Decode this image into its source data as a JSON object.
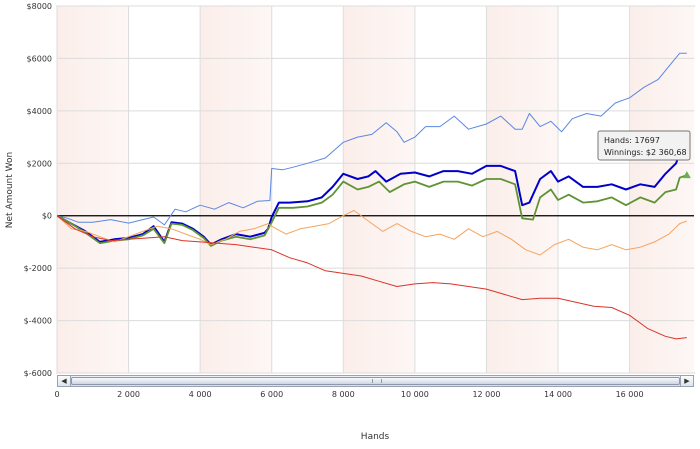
{
  "chart_data": {
    "type": "line",
    "xlabel": "Hands",
    "ylabel": "Net Amount Won",
    "xlim": [
      0,
      17800
    ],
    "ylim": [
      -6000,
      8000
    ],
    "x_ticks": [
      0,
      2000,
      4000,
      6000,
      8000,
      10000,
      12000,
      14000,
      16000
    ],
    "x_tick_labels": [
      "0",
      "2 000",
      "4 000",
      "6 000",
      "8 000",
      "10 000",
      "12 000",
      "14 000",
      "16 000"
    ],
    "y_ticks": [
      -6000,
      -4000,
      -2000,
      0,
      2000,
      4000,
      6000,
      8000
    ],
    "y_tick_labels": [
      "$-6000",
      "$-4000",
      "$-2000",
      "$0",
      "$2000",
      "$4000",
      "$6000",
      "$8000"
    ],
    "grid": true,
    "series": [
      {
        "color": "#5b87e3",
        "points": [
          [
            0,
            0
          ],
          [
            300,
            -100
          ],
          [
            600,
            -250
          ],
          [
            1000,
            -250
          ],
          [
            1500,
            -150
          ],
          [
            2000,
            -280
          ],
          [
            2400,
            -150
          ],
          [
            2700,
            -50
          ],
          [
            3000,
            -350
          ],
          [
            3300,
            250
          ],
          [
            3600,
            150
          ],
          [
            4000,
            400
          ],
          [
            4400,
            250
          ],
          [
            4800,
            500
          ],
          [
            5200,
            300
          ],
          [
            5600,
            550
          ],
          [
            5950,
            580
          ],
          [
            6000,
            1800
          ],
          [
            6300,
            1750
          ],
          [
            6600,
            1850
          ],
          [
            7000,
            2000
          ],
          [
            7500,
            2200
          ],
          [
            8000,
            2800
          ],
          [
            8400,
            3000
          ],
          [
            8800,
            3100
          ],
          [
            9200,
            3550
          ],
          [
            9500,
            3200
          ],
          [
            9700,
            2800
          ],
          [
            10000,
            3000
          ],
          [
            10300,
            3400
          ],
          [
            10700,
            3400
          ],
          [
            11100,
            3800
          ],
          [
            11500,
            3300
          ],
          [
            12000,
            3500
          ],
          [
            12400,
            3800
          ],
          [
            12800,
            3300
          ],
          [
            13000,
            3300
          ],
          [
            13200,
            3900
          ],
          [
            13500,
            3400
          ],
          [
            13800,
            3600
          ],
          [
            14100,
            3200
          ],
          [
            14400,
            3700
          ],
          [
            14800,
            3900
          ],
          [
            15200,
            3800
          ],
          [
            15600,
            4300
          ],
          [
            16000,
            4500
          ],
          [
            16400,
            4900
          ],
          [
            16800,
            5200
          ],
          [
            17100,
            5700
          ],
          [
            17400,
            6200
          ],
          [
            17600,
            6200
          ]
        ]
      },
      {
        "color": "#0000c8",
        "points": [
          [
            0,
            0
          ],
          [
            400,
            -300
          ],
          [
            800,
            -600
          ],
          [
            1200,
            -1000
          ],
          [
            1600,
            -900
          ],
          [
            2000,
            -850
          ],
          [
            2400,
            -700
          ],
          [
            2700,
            -400
          ],
          [
            3000,
            -1000
          ],
          [
            3200,
            -250
          ],
          [
            3500,
            -300
          ],
          [
            3800,
            -500
          ],
          [
            4100,
            -800
          ],
          [
            4300,
            -1100
          ],
          [
            4600,
            -900
          ],
          [
            5000,
            -700
          ],
          [
            5400,
            -800
          ],
          [
            5800,
            -650
          ],
          [
            5900,
            -500
          ],
          [
            6000,
            -50
          ],
          [
            6200,
            500
          ],
          [
            6500,
            500
          ],
          [
            7000,
            550
          ],
          [
            7400,
            700
          ],
          [
            7700,
            1100
          ],
          [
            8000,
            1600
          ],
          [
            8400,
            1400
          ],
          [
            8700,
            1500
          ],
          [
            8900,
            1700
          ],
          [
            9200,
            1300
          ],
          [
            9600,
            1600
          ],
          [
            10000,
            1650
          ],
          [
            10400,
            1500
          ],
          [
            10800,
            1700
          ],
          [
            11200,
            1700
          ],
          [
            11600,
            1600
          ],
          [
            12000,
            1900
          ],
          [
            12400,
            1900
          ],
          [
            12800,
            1700
          ],
          [
            13000,
            400
          ],
          [
            13200,
            500
          ],
          [
            13500,
            1400
          ],
          [
            13800,
            1700
          ],
          [
            14000,
            1300
          ],
          [
            14300,
            1500
          ],
          [
            14700,
            1100
          ],
          [
            15100,
            1100
          ],
          [
            15500,
            1200
          ],
          [
            15900,
            1000
          ],
          [
            16300,
            1200
          ],
          [
            16700,
            1100
          ],
          [
            17000,
            1600
          ],
          [
            17300,
            2000
          ],
          [
            17400,
            2400
          ],
          [
            17600,
            2350
          ]
        ]
      },
      {
        "color": "#5f9436",
        "points": [
          [
            0,
            0
          ],
          [
            400,
            -300
          ],
          [
            800,
            -650
          ],
          [
            1200,
            -1050
          ],
          [
            1600,
            -950
          ],
          [
            2000,
            -900
          ],
          [
            2400,
            -750
          ],
          [
            2700,
            -500
          ],
          [
            3000,
            -1050
          ],
          [
            3200,
            -300
          ],
          [
            3500,
            -350
          ],
          [
            3800,
            -550
          ],
          [
            4100,
            -850
          ],
          [
            4300,
            -1150
          ],
          [
            4600,
            -950
          ],
          [
            5000,
            -800
          ],
          [
            5400,
            -900
          ],
          [
            5800,
            -750
          ],
          [
            6000,
            -250
          ],
          [
            6200,
            300
          ],
          [
            6600,
            300
          ],
          [
            7000,
            350
          ],
          [
            7400,
            500
          ],
          [
            7700,
            800
          ],
          [
            8000,
            1300
          ],
          [
            8400,
            1000
          ],
          [
            8700,
            1100
          ],
          [
            9000,
            1300
          ],
          [
            9300,
            900
          ],
          [
            9700,
            1200
          ],
          [
            10000,
            1300
          ],
          [
            10400,
            1100
          ],
          [
            10800,
            1300
          ],
          [
            11200,
            1300
          ],
          [
            11600,
            1150
          ],
          [
            12000,
            1400
          ],
          [
            12400,
            1400
          ],
          [
            12800,
            1200
          ],
          [
            13000,
            -100
          ],
          [
            13300,
            -150
          ],
          [
            13500,
            700
          ],
          [
            13800,
            1000
          ],
          [
            14000,
            600
          ],
          [
            14300,
            800
          ],
          [
            14700,
            500
          ],
          [
            15100,
            550
          ],
          [
            15500,
            700
          ],
          [
            15900,
            400
          ],
          [
            16300,
            700
          ],
          [
            16700,
            500
          ],
          [
            17000,
            900
          ],
          [
            17300,
            1000
          ],
          [
            17400,
            1450
          ],
          [
            17600,
            1550
          ]
        ]
      },
      {
        "color": "#f4a460",
        "points": [
          [
            0,
            0
          ],
          [
            400,
            -500
          ],
          [
            800,
            -600
          ],
          [
            1200,
            -800
          ],
          [
            1600,
            -1000
          ],
          [
            2000,
            -800
          ],
          [
            2400,
            -600
          ],
          [
            2800,
            -400
          ],
          [
            3200,
            -500
          ],
          [
            3600,
            -700
          ],
          [
            4000,
            -900
          ],
          [
            4300,
            -1100
          ],
          [
            4700,
            -900
          ],
          [
            5100,
            -600
          ],
          [
            5500,
            -500
          ],
          [
            5900,
            -300
          ],
          [
            6000,
            -400
          ],
          [
            6400,
            -700
          ],
          [
            6800,
            -500
          ],
          [
            7200,
            -400
          ],
          [
            7600,
            -300
          ],
          [
            8000,
            0
          ],
          [
            8300,
            200
          ],
          [
            8700,
            -200
          ],
          [
            9100,
            -600
          ],
          [
            9500,
            -300
          ],
          [
            9900,
            -600
          ],
          [
            10300,
            -800
          ],
          [
            10700,
            -700
          ],
          [
            11100,
            -900
          ],
          [
            11500,
            -500
          ],
          [
            11900,
            -800
          ],
          [
            12300,
            -600
          ],
          [
            12700,
            -900
          ],
          [
            13100,
            -1300
          ],
          [
            13500,
            -1500
          ],
          [
            13900,
            -1100
          ],
          [
            14300,
            -900
          ],
          [
            14700,
            -1200
          ],
          [
            15100,
            -1300
          ],
          [
            15500,
            -1100
          ],
          [
            15900,
            -1300
          ],
          [
            16300,
            -1200
          ],
          [
            16700,
            -1000
          ],
          [
            17100,
            -700
          ],
          [
            17400,
            -300
          ],
          [
            17600,
            -200
          ]
        ]
      },
      {
        "color": "#d9342b",
        "points": [
          [
            0,
            0
          ],
          [
            500,
            -500
          ],
          [
            1000,
            -800
          ],
          [
            1500,
            -950
          ],
          [
            2000,
            -900
          ],
          [
            2500,
            -850
          ],
          [
            3000,
            -800
          ],
          [
            3500,
            -950
          ],
          [
            4000,
            -1000
          ],
          [
            4500,
            -1050
          ],
          [
            5000,
            -1100
          ],
          [
            5500,
            -1200
          ],
          [
            6000,
            -1300
          ],
          [
            6500,
            -1600
          ],
          [
            7000,
            -1800
          ],
          [
            7500,
            -2100
          ],
          [
            8000,
            -2200
          ],
          [
            8500,
            -2300
          ],
          [
            9000,
            -2500
          ],
          [
            9500,
            -2700
          ],
          [
            10000,
            -2600
          ],
          [
            10500,
            -2550
          ],
          [
            11000,
            -2600
          ],
          [
            11500,
            -2700
          ],
          [
            12000,
            -2800
          ],
          [
            12500,
            -3000
          ],
          [
            13000,
            -3200
          ],
          [
            13500,
            -3150
          ],
          [
            14000,
            -3150
          ],
          [
            14500,
            -3300
          ],
          [
            15000,
            -3450
          ],
          [
            15500,
            -3500
          ],
          [
            16000,
            -3800
          ],
          [
            16500,
            -4300
          ],
          [
            17000,
            -4600
          ],
          [
            17300,
            -4700
          ],
          [
            17600,
            -4650
          ]
        ]
      }
    ],
    "tooltip": {
      "hands": "Hands: 17697",
      "winnings": "Winnings: $2 360,68"
    }
  }
}
